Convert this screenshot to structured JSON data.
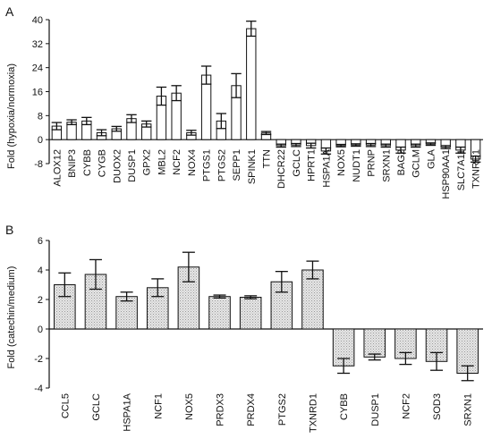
{
  "chart_data": [
    {
      "panel_label": "A",
      "type": "bar",
      "ylabel": "Fold (hypoxia/normoxia)",
      "ylim": [
        -8,
        40
      ],
      "yticks": [
        -8,
        0,
        8,
        16,
        24,
        32,
        40
      ],
      "grid": false,
      "bar_fill": "#ffffff",
      "categories": [
        "ALOX12",
        "BNIP3",
        "CYBB",
        "CYGB",
        "DUOX2",
        "DUSP1",
        "GPX2",
        "MBL2",
        "NCF2",
        "NOX4",
        "PTGS1",
        "PTGS2",
        "SEPP1",
        "SPINK1",
        "TTN",
        "DHCR22",
        "GCLC",
        "HPRT1",
        "HSPA1A",
        "NOX5",
        "NUDT1",
        "PRNP",
        "SRXN1",
        "BAG2",
        "GCLM",
        "GLA",
        "HSP90AA1",
        "SLC7A11",
        "TXNRD1"
      ],
      "values": [
        4.5,
        5.8,
        6.2,
        2.3,
        3.6,
        7.0,
        5.2,
        14.5,
        15.5,
        2.3,
        21.5,
        6.2,
        18.0,
        37.0,
        2.2,
        -2.0,
        -1.8,
        -2.0,
        -3.8,
        -2.0,
        -1.8,
        -1.8,
        -2.0,
        -3.5,
        -2.0,
        -1.5,
        -2.5,
        -3.5,
        -6.5
      ],
      "errors": [
        1.2,
        0.8,
        1.2,
        1.0,
        0.8,
        1.3,
        1.0,
        3.0,
        2.5,
        0.8,
        3.0,
        2.5,
        4.0,
        2.5,
        0.5,
        0.5,
        0.5,
        0.8,
        1.0,
        0.4,
        0.4,
        0.5,
        0.5,
        1.0,
        0.5,
        0.4,
        0.5,
        1.0,
        1.0
      ]
    },
    {
      "panel_label": "B",
      "type": "bar",
      "ylabel": "Fold (catechin/medium)",
      "ylim": [
        -4,
        6
      ],
      "yticks": [
        -4,
        -2,
        0,
        2,
        4,
        6
      ],
      "grid": false,
      "bar_fill": "#dcdcdc",
      "categories": [
        "CCL5",
        "GCLC",
        "HSPA1A",
        "NCF1",
        "NOX5",
        "PRDX3",
        "PRDX4",
        "PTGS2",
        "TXNRD1",
        "CYBB",
        "DUSP1",
        "NCF2",
        "SOD3",
        "SRXN1"
      ],
      "values": [
        3.0,
        3.7,
        2.2,
        2.8,
        4.2,
        2.2,
        2.15,
        3.2,
        4.0,
        -2.5,
        -1.9,
        -2.0,
        -2.2,
        -3.0
      ],
      "errors": [
        0.8,
        1.0,
        0.3,
        0.6,
        1.0,
        0.1,
        0.1,
        0.7,
        0.6,
        0.5,
        0.2,
        0.4,
        0.6,
        0.5
      ]
    }
  ]
}
